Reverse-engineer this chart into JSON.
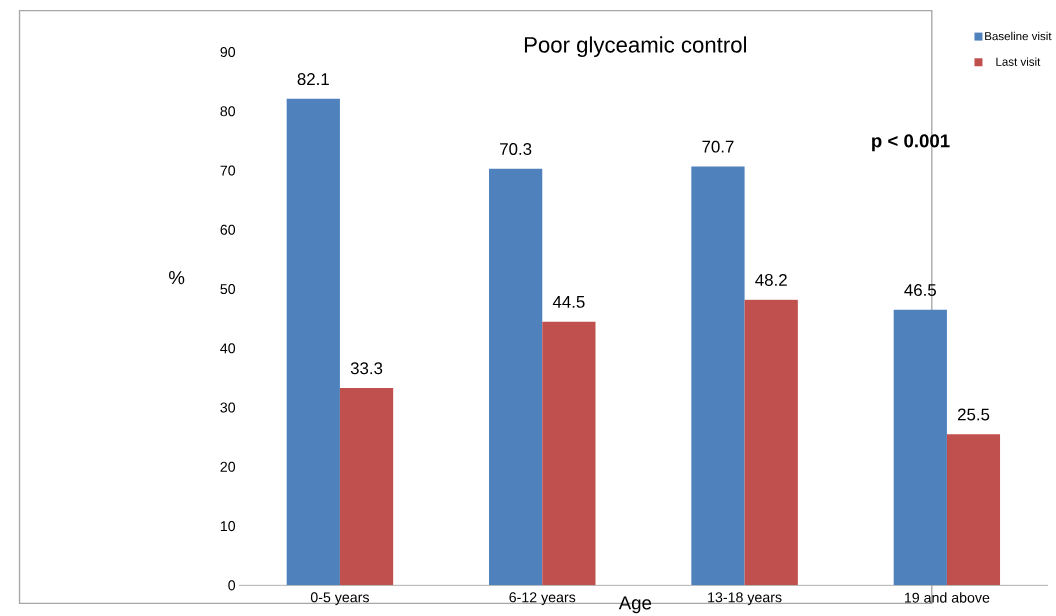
{
  "chart_data": {
    "type": "bar",
    "title": "Poor glyceamic control",
    "xlabel": "Age",
    "ylabel": "%",
    "categories": [
      "0-5 years",
      "6-12 years",
      "13-18 years",
      "19 and above"
    ],
    "series": [
      {
        "name": "Baseline visit",
        "color": "#4f81bd",
        "values": [
          82.1,
          70.3,
          70.7,
          46.5
        ]
      },
      {
        "name": "Last visit",
        "color": "#c0504d",
        "values": [
          33.3,
          44.5,
          48.2,
          25.5
        ]
      }
    ],
    "ylim": [
      0,
      90
    ],
    "yticks": [
      0,
      10,
      20,
      30,
      40,
      50,
      60,
      70,
      80,
      90
    ],
    "data_labels": true,
    "legend": "top right",
    "annotations": [
      "p < 0.001"
    ]
  }
}
